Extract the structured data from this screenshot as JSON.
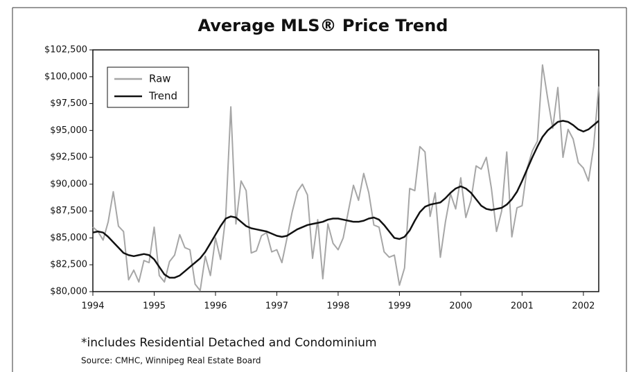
{
  "chart_data": {
    "type": "line",
    "title": "Average MLS® Price Trend",
    "notes": [
      "*includes Residential Detached and Condominium",
      "Source: CMHC, Winnipeg Real Estate Board"
    ],
    "x": [
      1994,
      1994.083,
      1994.167,
      1994.25,
      1994.333,
      1994.417,
      1994.5,
      1994.583,
      1994.667,
      1994.75,
      1994.833,
      1994.917,
      1995,
      1995.083,
      1995.167,
      1995.25,
      1995.333,
      1995.417,
      1995.5,
      1995.583,
      1995.667,
      1995.75,
      1995.833,
      1995.917,
      1996,
      1996.083,
      1996.167,
      1996.25,
      1996.333,
      1996.417,
      1996.5,
      1996.583,
      1996.667,
      1996.75,
      1996.833,
      1996.917,
      1997,
      1997.083,
      1997.167,
      1997.25,
      1997.333,
      1997.417,
      1997.5,
      1997.583,
      1997.667,
      1997.75,
      1997.833,
      1997.917,
      1998,
      1998.083,
      1998.167,
      1998.25,
      1998.333,
      1998.417,
      1998.5,
      1998.583,
      1998.667,
      1998.75,
      1998.833,
      1998.917,
      1999,
      1999.083,
      1999.167,
      1999.25,
      1999.333,
      1999.417,
      1999.5,
      1999.583,
      1999.667,
      1999.75,
      1999.833,
      1999.917,
      2000,
      2000.083,
      2000.167,
      2000.25,
      2000.333,
      2000.417,
      2000.5,
      2000.583,
      2000.667,
      2000.75,
      2000.833,
      2000.917,
      2001,
      2001.083,
      2001.167,
      2001.25,
      2001.333,
      2001.417,
      2001.5,
      2001.583,
      2001.667,
      2001.75,
      2001.833,
      2001.917,
      2002,
      2002.083,
      2002.167,
      2002.25
    ],
    "series": [
      {
        "name": "Raw",
        "color": "#a6a6a6",
        "values": [
          86000,
          85600,
          84800,
          86500,
          89300,
          86100,
          85600,
          81100,
          82000,
          80900,
          82900,
          82700,
          86000,
          81500,
          80900,
          82800,
          83400,
          85300,
          84100,
          83900,
          80700,
          80100,
          83300,
          81500,
          85000,
          83000,
          87000,
          97200,
          86300,
          90300,
          89400,
          83600,
          83800,
          85200,
          85500,
          83700,
          83900,
          82700,
          85000,
          87400,
          89300,
          90000,
          89000,
          83100,
          86700,
          81200,
          86300,
          84500,
          83900,
          85000,
          87500,
          89900,
          88500,
          91000,
          89200,
          86200,
          86000,
          83700,
          83200,
          83400,
          80600,
          82200,
          89600,
          89400,
          93500,
          93000,
          87000,
          89200,
          83200,
          86500,
          89100,
          87700,
          90600,
          86900,
          88500,
          91700,
          91400,
          92500,
          89600,
          85600,
          87500,
          93000,
          85100,
          87800,
          88000,
          91500,
          93100,
          94000,
          101100,
          98000,
          95200,
          99000,
          92500,
          95100,
          94200,
          92000,
          91500,
          90300,
          93500,
          99100
        ]
      },
      {
        "name": "Trend",
        "color": "#111111",
        "values": [
          85500,
          85600,
          85500,
          85100,
          84600,
          84100,
          83600,
          83400,
          83300,
          83400,
          83500,
          83400,
          83000,
          82300,
          81600,
          81300,
          81300,
          81500,
          81900,
          82300,
          82700,
          83100,
          83700,
          84500,
          85300,
          86100,
          86800,
          87000,
          86900,
          86500,
          86100,
          85900,
          85800,
          85700,
          85600,
          85400,
          85200,
          85100,
          85200,
          85500,
          85800,
          86000,
          86200,
          86300,
          86400,
          86500,
          86700,
          86800,
          86800,
          86700,
          86600,
          86500,
          86500,
          86600,
          86800,
          86900,
          86700,
          86200,
          85600,
          85000,
          84900,
          85100,
          85700,
          86600,
          87400,
          87900,
          88100,
          88200,
          88300,
          88700,
          89200,
          89600,
          89800,
          89600,
          89200,
          88600,
          88000,
          87700,
          87600,
          87700,
          87800,
          88100,
          88600,
          89300,
          90300,
          91400,
          92500,
          93500,
          94400,
          95000,
          95400,
          95800,
          95900,
          95800,
          95500,
          95100,
          94900,
          95100,
          95500,
          95900
        ]
      }
    ],
    "xlim": [
      1994,
      2002.25
    ],
    "xticks": [
      1994,
      1995,
      1996,
      1997,
      1998,
      1999,
      2000,
      2001,
      2002
    ],
    "ylim": [
      80000,
      102500
    ],
    "yticks": [
      {
        "value": 80000,
        "label": "$80,000"
      },
      {
        "value": 82500,
        "label": "$82,500"
      },
      {
        "value": 85000,
        "label": "$85,000"
      },
      {
        "value": 87500,
        "label": "$87,500"
      },
      {
        "value": 90000,
        "label": "$90,000"
      },
      {
        "value": 92500,
        "label": "$92,500"
      },
      {
        "value": 95000,
        "label": "$95,000"
      },
      {
        "value": 97500,
        "label": "$97,500"
      },
      {
        "value": 100000,
        "label": "$100,000"
      },
      {
        "value": 102500,
        "label": "$102,500"
      }
    ],
    "grid": false,
    "legend": "upper left"
  }
}
